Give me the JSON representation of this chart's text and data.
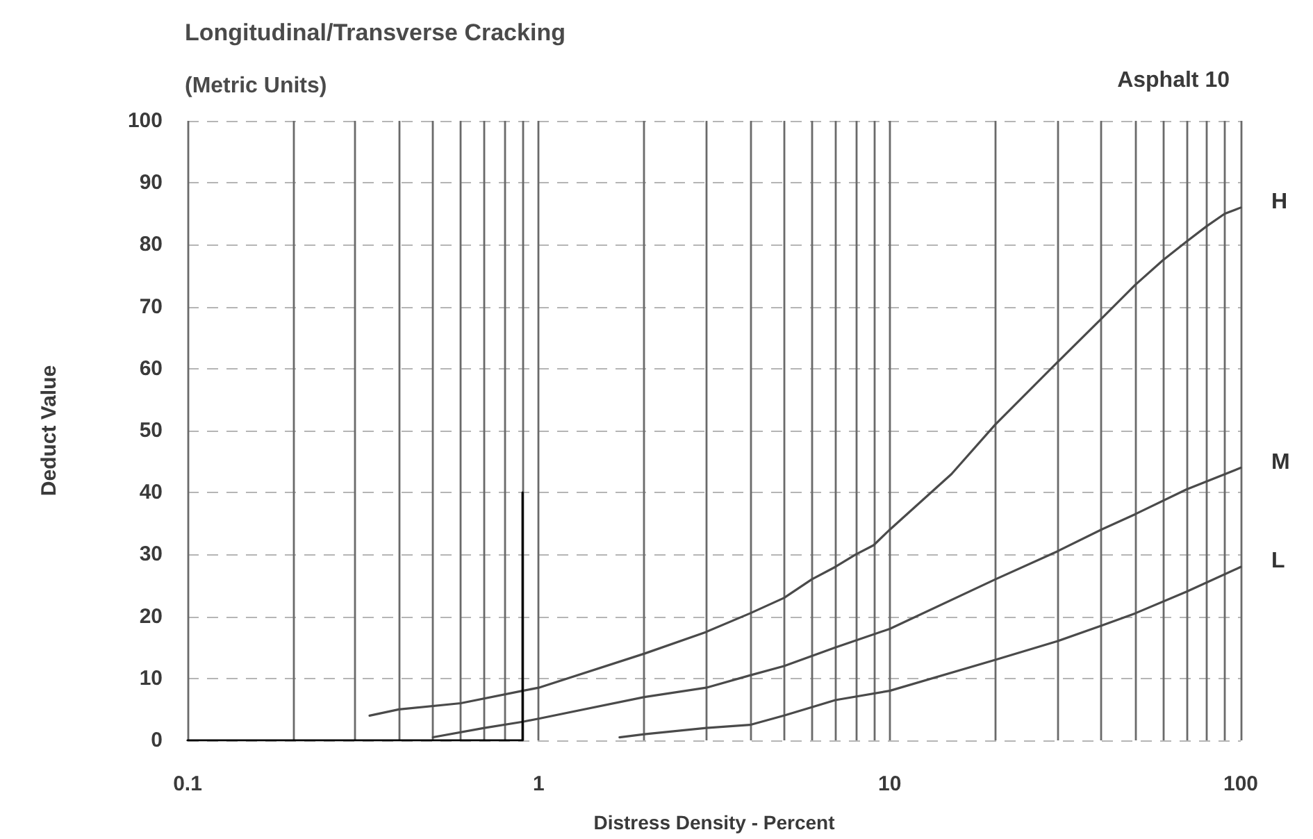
{
  "chart_data": {
    "type": "line",
    "title": "Longitudinal/Transverse Cracking",
    "subtitle": "(Metric Units)",
    "xlabel": "Distress Density - Percent",
    "ylabel": "Deduct Value",
    "annotations": [
      "Asphalt 10"
    ],
    "log": "x",
    "xlim": [
      0.1,
      100
    ],
    "xticks": [
      0.1,
      {
        "value": 0.2,
        "label": null
      },
      {
        "value": 0.3,
        "label": null
      },
      {
        "value": 0.4,
        "label": null
      },
      {
        "value": 0.5,
        "label": null
      },
      {
        "value": 0.6,
        "label": null
      },
      {
        "value": 0.7,
        "label": null
      },
      {
        "value": 0.8,
        "label": null
      },
      {
        "value": 0.9,
        "label": null
      },
      1,
      {
        "value": 2,
        "label": null
      },
      {
        "value": 3,
        "label": null
      },
      {
        "value": 4,
        "label": null
      },
      {
        "value": 5,
        "label": null
      },
      {
        "value": 6,
        "label": null
      },
      {
        "value": 7,
        "label": null
      },
      {
        "value": 8,
        "label": null
      },
      {
        "value": 9,
        "label": null
      },
      10,
      {
        "value": 20,
        "label": null
      },
      {
        "value": 30,
        "label": null
      },
      {
        "value": 40,
        "label": null
      },
      {
        "value": 50,
        "label": null
      },
      {
        "value": 60,
        "label": null
      },
      {
        "value": 70,
        "label": null
      },
      {
        "value": 80,
        "label": null
      },
      {
        "value": 90,
        "label": null
      },
      100
    ],
    "ylim": [
      0,
      100
    ],
    "yticks": [
      0,
      10,
      20,
      30,
      40,
      50,
      60,
      70,
      80,
      90,
      100
    ],
    "grid": true,
    "series": [
      {
        "name": "H",
        "color": "#4a4a4a",
        "x": [
          0.33,
          0.4,
          0.6,
          0.9,
          1,
          2,
          3,
          4,
          5,
          6,
          7,
          8,
          9,
          10,
          15,
          20,
          30,
          40,
          50,
          60,
          70,
          80,
          90,
          100
        ],
        "values": [
          4,
          5,
          6,
          8,
          8.5,
          14,
          17.5,
          20.5,
          23,
          26,
          28,
          30,
          31.5,
          34,
          43,
          51,
          61,
          68,
          73.5,
          77.5,
          80.5,
          83,
          85,
          86
        ]
      },
      {
        "name": "M",
        "color": "#4a4a4a",
        "x": [
          0.5,
          0.7,
          0.9,
          1,
          2,
          3,
          4,
          5,
          7,
          10,
          20,
          30,
          40,
          50,
          70,
          100
        ],
        "values": [
          0.5,
          2,
          3,
          3.5,
          7,
          8.5,
          10.5,
          12,
          15,
          18,
          26,
          30.5,
          34,
          36.5,
          40.5,
          44
        ]
      },
      {
        "name": "L",
        "color": "#4a4a4a",
        "x": [
          1.7,
          2,
          3,
          4,
          5,
          7,
          10,
          20,
          30,
          40,
          50,
          70,
          100
        ],
        "values": [
          0.5,
          1,
          2,
          2.5,
          4,
          6.5,
          8,
          13,
          16,
          18.5,
          20.5,
          24,
          28
        ]
      },
      {
        "color": "#000000",
        "x": [
          0.1,
          0.9,
          0.9
        ],
        "values": [
          0,
          0,
          40
        ]
      }
    ]
  }
}
